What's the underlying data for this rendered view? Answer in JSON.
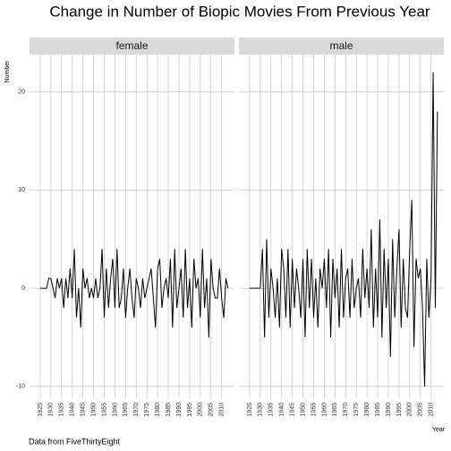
{
  "chart_data": {
    "type": "line",
    "title": "Change in Number of Biopic Movies From Previous Year",
    "x_label": "Year",
    "y_label": "Number",
    "caption": "Data from FiveThirtyEight",
    "x": [
      1925,
      1926,
      1927,
      1928,
      1929,
      1930,
      1931,
      1932,
      1933,
      1934,
      1935,
      1936,
      1937,
      1938,
      1939,
      1940,
      1941,
      1942,
      1943,
      1944,
      1945,
      1946,
      1947,
      1948,
      1949,
      1950,
      1951,
      1952,
      1953,
      1954,
      1955,
      1956,
      1957,
      1958,
      1959,
      1960,
      1961,
      1962,
      1963,
      1964,
      1965,
      1966,
      1967,
      1968,
      1969,
      1970,
      1971,
      1972,
      1973,
      1974,
      1975,
      1976,
      1977,
      1978,
      1979,
      1980,
      1981,
      1982,
      1983,
      1984,
      1985,
      1986,
      1987,
      1988,
      1989,
      1990,
      1991,
      1992,
      1993,
      1994,
      1995,
      1996,
      1997,
      1998,
      1999,
      2000,
      2001,
      2002,
      2003,
      2004,
      2005,
      2006,
      2007,
      2008,
      2009,
      2010,
      2011,
      2012,
      2013
    ],
    "series": [
      {
        "name": "female",
        "color": "#000000",
        "values": [
          0,
          0,
          0,
          0,
          1,
          1,
          0,
          -1,
          1,
          0,
          1,
          -2,
          1,
          -1,
          2,
          -1,
          4,
          -3,
          0,
          -4,
          2,
          0,
          1,
          -1,
          0,
          -1,
          1,
          -1,
          0,
          4,
          -3,
          2,
          -2,
          1,
          3,
          -2,
          4,
          -2,
          -1,
          2,
          -3,
          0,
          2,
          -1,
          -3,
          1,
          0,
          -2,
          1,
          -1,
          0,
          1,
          2,
          -1,
          -4,
          2,
          3,
          -2,
          0,
          1,
          -1,
          3,
          -4,
          4,
          -2,
          0,
          2,
          -3,
          4,
          -2,
          1,
          -4,
          3,
          0,
          1,
          -3,
          4,
          -2,
          1,
          -5,
          3,
          0,
          -1,
          -1,
          2,
          -1,
          -3,
          1,
          0
        ]
      },
      {
        "name": "male",
        "color": "#000000",
        "values": [
          0,
          0,
          0,
          0,
          0,
          0,
          4,
          -5,
          5,
          -3,
          2,
          0,
          -3,
          1,
          -4,
          4,
          2,
          -3,
          4,
          -4,
          3,
          -2,
          2,
          0,
          -3,
          3,
          -5,
          4,
          -2,
          3,
          -3,
          1,
          -4,
          2,
          0,
          3,
          -2,
          4,
          -5,
          3,
          -1,
          2,
          -4,
          4,
          -3,
          1,
          2,
          -3,
          3,
          -2,
          0,
          1,
          -3,
          4,
          -1,
          2,
          -2,
          6,
          -4,
          2,
          -3,
          7,
          -5,
          4,
          -2,
          3,
          -7,
          5,
          -3,
          2,
          6,
          -4,
          3,
          -2,
          -3,
          4,
          9,
          -6,
          3,
          1,
          2,
          -2,
          -10,
          3,
          -3,
          1,
          22,
          -2,
          18
        ]
      }
    ],
    "xlim": [
      1920,
      2016
    ],
    "xticks": [
      1925,
      1930,
      1935,
      1940,
      1945,
      1950,
      1955,
      1960,
      1965,
      1970,
      1975,
      1980,
      1985,
      1990,
      1995,
      2000,
      2005,
      2010
    ],
    "ylim": [
      -11.2,
      23.8
    ],
    "yticks": [
      -10,
      0,
      10,
      20
    ],
    "grid": true
  }
}
